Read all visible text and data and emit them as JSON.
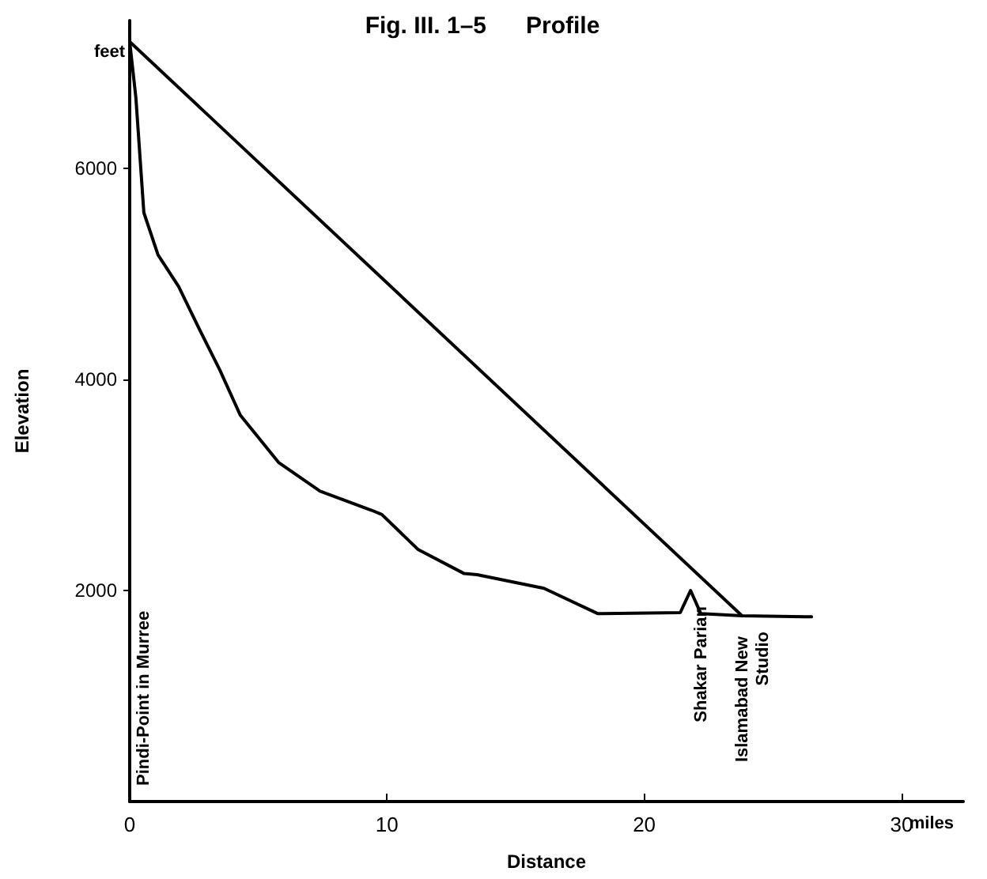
{
  "chart_data": {
    "type": "line",
    "title": "Fig. III. 1–5      Profile",
    "xlabel": "Distance",
    "ylabel": "Elevation",
    "xlim": [
      0,
      32.4
    ],
    "xticks": [
      0,
      10,
      20,
      30
    ],
    "ylim": [
      0,
      7400
    ],
    "yticks": [
      2000,
      4000,
      6000
    ],
    "grid": false,
    "marker": "none",
    "line_style": "solid",
    "series": [
      {
        "color": "#000000",
        "x": [
          0,
          0.24,
          0.55,
          1.1,
          1.9,
          2.7,
          3.5,
          4.3,
          5.8,
          7.4,
          9.4,
          9.8,
          11.2,
          13.0,
          13.5,
          16.1,
          18.2,
          21.4,
          21.8,
          22.2,
          23.8,
          26.5
        ],
        "values": [
          7200,
          6670,
          5580,
          5180,
          4880,
          4480,
          4090,
          3660,
          3210,
          2940,
          2760,
          2720,
          2390,
          2160,
          2150,
          2020,
          1780,
          1790,
          2000,
          1780,
          1760,
          1750
        ]
      },
      {
        "color": "#000000",
        "x": [
          0,
          23.8
        ],
        "values": [
          7200,
          1760
        ]
      }
    ],
    "annotations": [
      "feet",
      "miles",
      "Pindi-Point in Murree",
      {
        "text": "Shakar Parian",
        "x": 21.8,
        "y": 2000
      },
      {
        "text": "Islamabad New Studio",
        "x": 23.8,
        "y": 1760
      }
    ]
  }
}
